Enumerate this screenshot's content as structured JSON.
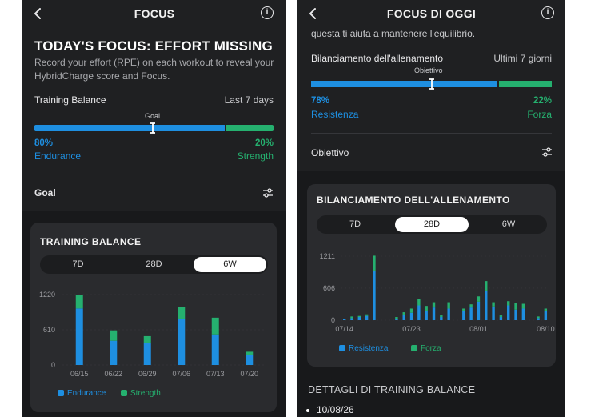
{
  "left": {
    "title": "FOCUS",
    "info_glyph": "i",
    "headline": "TODAY'S FOCUS: EFFORT MISSING",
    "subtext": "Record your effort (RPE) on each workout to reveal your HybridCharge score and Focus.",
    "balance_label": "Training Balance",
    "balance_period": "Last 7 days",
    "goal_word": "Goal",
    "endurance_pct": "80%",
    "endurance_label": "Endurance",
    "strength_pct": "20%",
    "strength_label": "Strength",
    "balance_fraction": 0.8,
    "goal_row_label": "Goal",
    "card_title": "TRAINING BALANCE",
    "tabs": [
      "7D",
      "28D",
      "6W"
    ],
    "active_tab": "6W",
    "legend": {
      "a": "Endurance",
      "b": "Strength"
    }
  },
  "right": {
    "title": "FOCUS DI OGGI",
    "info_glyph": "i",
    "scroll_text": "questa ti aiuta a mantenere l'equilibrio.",
    "balance_label": "Bilanciamento dell'allenamento",
    "balance_period": "Ultimi 7 giorni",
    "goal_word": "Obiettivo",
    "endurance_pct": "78%",
    "endurance_label": "Resistenza",
    "strength_pct": "22%",
    "strength_label": "Forza",
    "balance_fraction": 0.78,
    "goal_row_label": "Obiettivo",
    "card_title": "BILANCIAMENTO DELL'ALLENAMENTO",
    "tabs": [
      "7D",
      "28D",
      "6W"
    ],
    "active_tab": "28D",
    "legend": {
      "a": "Resistenza",
      "b": "Forza"
    },
    "details_title": "DETTAGLI DI TRAINING BALANCE",
    "details_first_date": "10/08/26"
  },
  "colors": {
    "endurance": "#1e8fe1",
    "strength": "#25b06f",
    "background": "#1f2022",
    "card": "#2a2b2e"
  },
  "icons": {
    "back": "chevron-left-icon",
    "info": "info-circle-icon",
    "goal": "sliders-icon"
  },
  "chart_data": [
    {
      "type": "bar",
      "stacked": true,
      "categories": [
        "06/15",
        "06/22",
        "06/29",
        "07/06",
        "07/13",
        "07/20"
      ],
      "series": [
        {
          "name": "Endurance",
          "values": [
            980,
            420,
            380,
            800,
            530,
            180
          ]
        },
        {
          "name": "Strength",
          "values": [
            240,
            180,
            120,
            200,
            290,
            50
          ]
        }
      ],
      "yticks": [
        "0",
        "610",
        "1220"
      ],
      "ylim": [
        0,
        1220
      ]
    },
    {
      "type": "bar",
      "stacked": true,
      "x": [
        "07/14",
        "07/15",
        "07/16",
        "07/17",
        "07/18",
        "07/19",
        "07/20",
        "07/21",
        "07/22",
        "07/23",
        "07/24",
        "07/25",
        "07/26",
        "07/27",
        "07/28",
        "07/29",
        "07/30",
        "07/31",
        "08/01",
        "08/02",
        "08/03",
        "08/04",
        "08/05",
        "08/06",
        "08/07",
        "08/08",
        "08/09",
        "08/10"
      ],
      "xticks": [
        "07/14",
        "07/23",
        "08/01",
        "08/10"
      ],
      "series": [
        {
          "name": "Resistenza",
          "values": [
            30,
            40,
            60,
            80,
            930,
            0,
            0,
            30,
            100,
            140,
            280,
            180,
            240,
            60,
            220,
            0,
            180,
            240,
            350,
            560,
            260,
            60,
            280,
            200,
            220,
            0,
            40,
            180
          ]
        },
        {
          "name": "Forza",
          "values": [
            0,
            30,
            20,
            30,
            290,
            0,
            0,
            30,
            50,
            80,
            120,
            90,
            100,
            30,
            120,
            0,
            40,
            60,
            100,
            180,
            80,
            30,
            80,
            130,
            90,
            0,
            30,
            40
          ]
        }
      ],
      "yticks": [
        "0",
        "606",
        "1211"
      ],
      "ylim": [
        0,
        1211
      ]
    }
  ]
}
